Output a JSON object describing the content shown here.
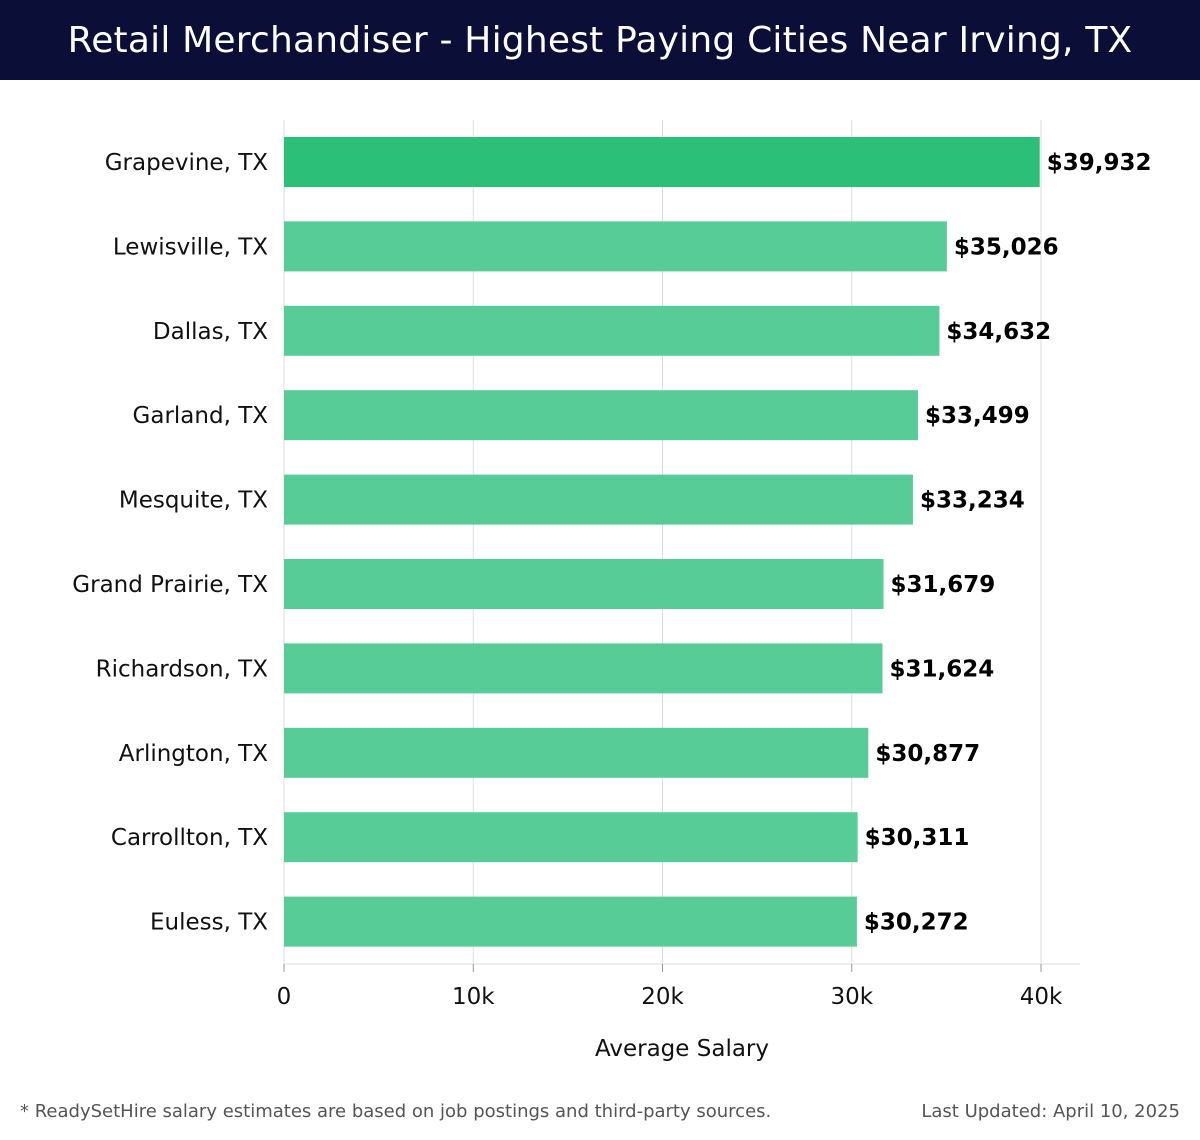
{
  "header": {
    "title": "Retail Merchandiser - Highest Paying Cities Near Irving, TX"
  },
  "chart_data": {
    "type": "bar",
    "orientation": "horizontal",
    "title": "Retail Merchandiser - Highest Paying Cities Near Irving, TX",
    "xlabel": "Average Salary",
    "ylabel": "",
    "xlim": [
      0,
      42000
    ],
    "grid": true,
    "categories": [
      "Grapevine, TX",
      "Lewisville, TX",
      "Dallas, TX",
      "Garland, TX",
      "Mesquite, TX",
      "Grand Prairie, TX",
      "Richardson, TX",
      "Arlington, TX",
      "Carrollton, TX",
      "Euless, TX"
    ],
    "values": [
      39932,
      35026,
      34632,
      33499,
      33234,
      31679,
      31624,
      30877,
      30311,
      30272
    ],
    "value_labels": [
      "$39,932",
      "$35,026",
      "$34,632",
      "$33,499",
      "$33,234",
      "$31,679",
      "$31,624",
      "$30,877",
      "$30,311",
      "$30,272"
    ],
    "ticks": [
      0,
      10000,
      20000,
      30000,
      40000
    ],
    "tick_labels": [
      "0",
      "10k",
      "20k",
      "30k",
      "40k"
    ],
    "colors": {
      "top_bar": "#2bbf78",
      "bar": "#57cc96",
      "grid": "#dddddd"
    }
  },
  "footer": {
    "note": "* ReadySetHire salary estimates are based on job postings and third-party sources.",
    "updated": "Last Updated: April 10, 2025"
  }
}
